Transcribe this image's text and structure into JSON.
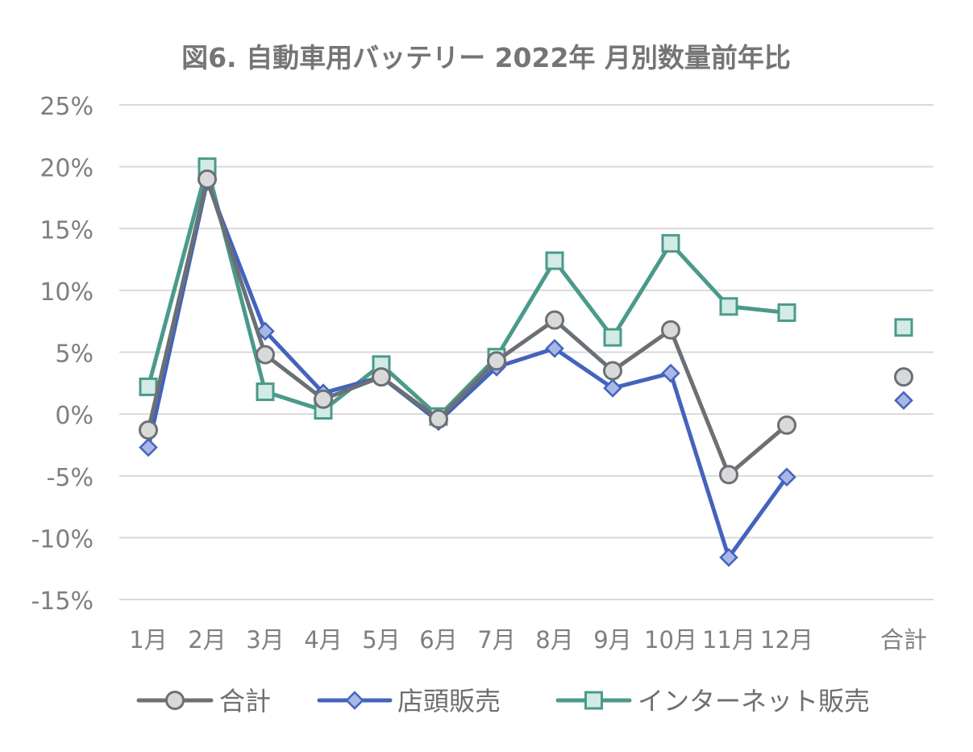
{
  "chart_data": {
    "type": "line",
    "title": "図6. 自動車用バッテリー 2022年 月別数量前年比",
    "categories": [
      "1月",
      "2月",
      "3月",
      "4月",
      "5月",
      "6月",
      "7月",
      "8月",
      "9月",
      "10月",
      "11月",
      "12月",
      "合計"
    ],
    "ylim": [
      -15,
      25
    ],
    "yticks": [
      25,
      20,
      15,
      10,
      5,
      0,
      -5,
      -10,
      -15
    ],
    "ytick_labels": [
      "25%",
      "20%",
      "15%",
      "10%",
      "5%",
      "0%",
      "-5%",
      "-10%",
      "-15%"
    ],
    "grid": true,
    "legend_position": "bottom",
    "series": [
      {
        "name": "合計",
        "color": "#6b7075",
        "fill": "#d9d9d9",
        "marker": "circle",
        "values": [
          -1.3,
          19.0,
          4.8,
          1.2,
          3.0,
          -0.4,
          4.3,
          7.6,
          3.5,
          6.8,
          -4.9,
          -0.9,
          3.0
        ]
      },
      {
        "name": "店頭販売",
        "color": "#4363bd",
        "fill": "#a8b8e6",
        "marker": "diamond",
        "values": [
          -2.7,
          18.8,
          6.7,
          1.7,
          3.0,
          -0.6,
          3.8,
          5.3,
          2.1,
          3.3,
          -11.6,
          -5.1,
          1.1
        ]
      },
      {
        "name": "インターネット販売",
        "color": "#4a9a8c",
        "fill": "#d3ebe5",
        "marker": "square",
        "values": [
          2.2,
          20.0,
          1.8,
          0.3,
          4.0,
          -0.2,
          4.6,
          12.4,
          6.2,
          13.8,
          8.7,
          8.2,
          7.0
        ]
      }
    ]
  }
}
